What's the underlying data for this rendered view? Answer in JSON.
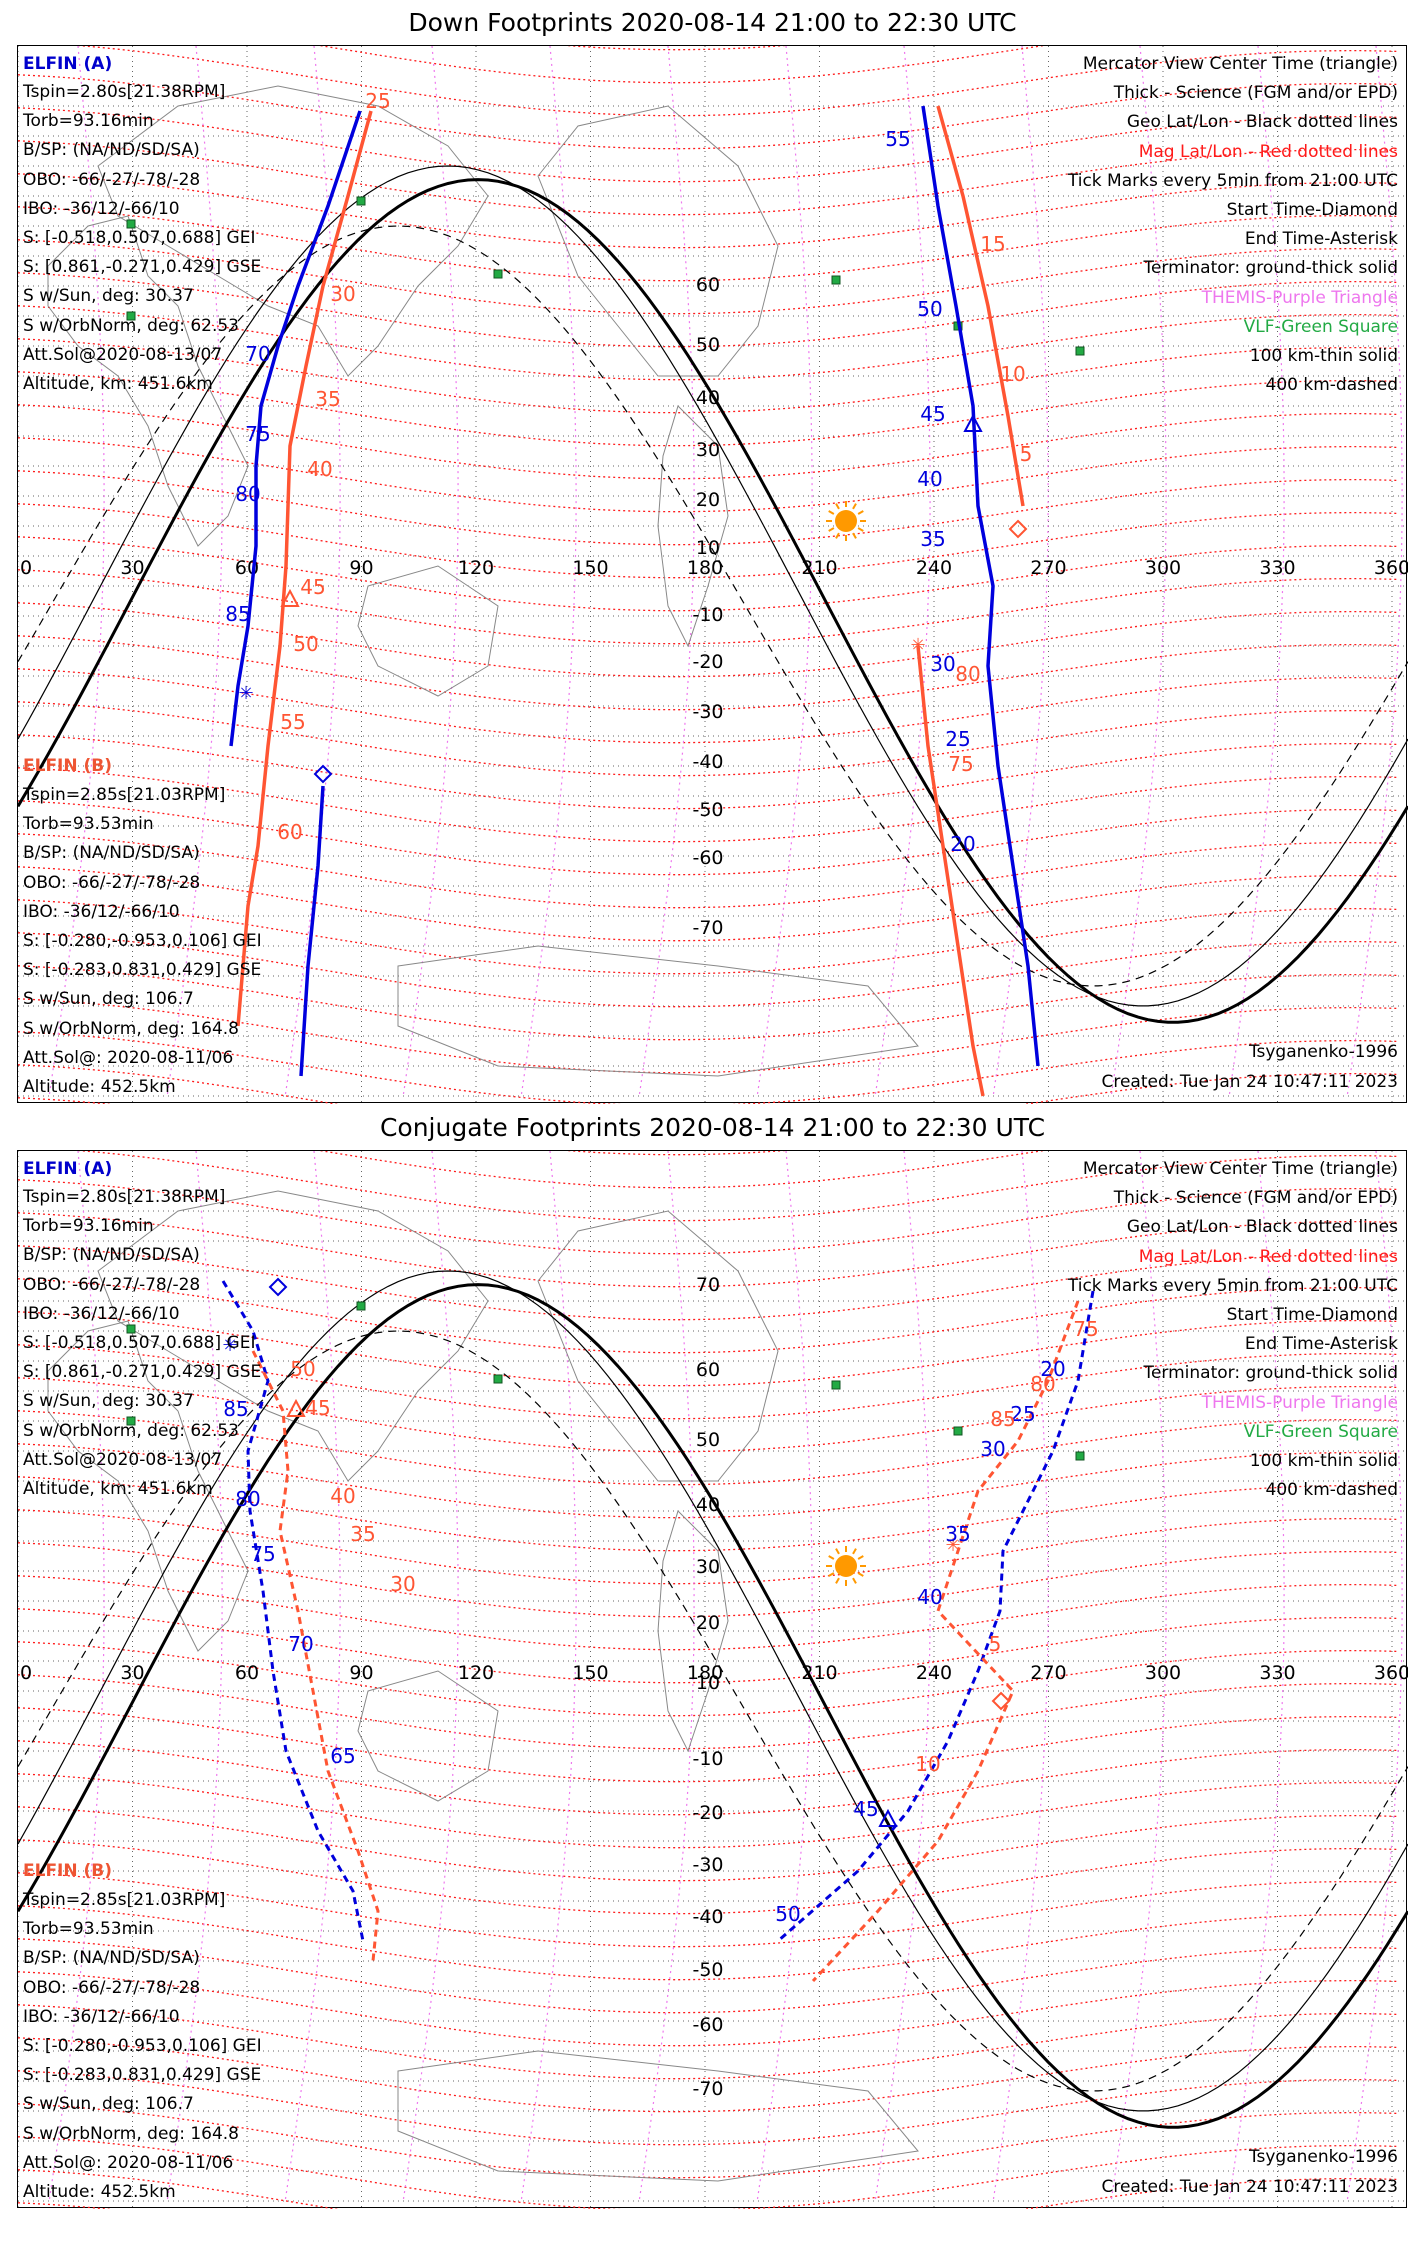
{
  "panels": [
    {
      "id": "down",
      "title": "Down Footprints 2020-08-14 21:00 to 22:30 UTC",
      "left_info": {
        "sat_a": "ELFIN (A)",
        "a_lines": [
          "Tspin=2.80s[21.38RPM]",
          "Torb=93.16min",
          "B/SP: (NA/ND/SD/SA)",
          "OBO: -66/-27/-78/-28",
          "IBO: -36/12/-66/10",
          "S: [-0.518,0.507,0.688] GEI",
          "S: [0.861,-0.271,0.429] GSE",
          "S w/Sun, deg: 30.37",
          "S w/OrbNorm, deg: 62.53",
          "Att.Sol@2020-08-13/07",
          "Altitude, km: 451.6km"
        ],
        "sat_b": "ELFIN (B)",
        "b_lines": [
          "Tspin=2.85s[21.03RPM]",
          "Torb=93.53min",
          "B/SP: (NA/ND/SD/SA)",
          "OBO: -66/-27/-78/-28",
          "IBO: -36/12/-66/10",
          "S: [-0.280,-0.953,0.106] GEI",
          "S: [-0.283,0.831,0.429] GSE",
          "S w/Sun, deg: 106.7",
          "S w/OrbNorm, deg: 164.8",
          "Att.Sol@: 2020-08-11/06",
          "Altitude: 452.5km"
        ]
      },
      "footer_right": "Created: Tue Jan 24 10:47:11 2023",
      "footer_model": "Tsyganenko-1996"
    },
    {
      "id": "conjugate",
      "title": "Conjugate Footprints 2020-08-14 21:00 to 22:30 UTC",
      "left_info": {
        "sat_a": "ELFIN (A)",
        "a_lines": [
          "Tspin=2.80s[21.38RPM]",
          "Torb=93.16min",
          "B/SP: (NA/ND/SD/SA)",
          "OBO: -66/-27/-78/-28",
          "IBO: -36/12/-66/10",
          "S: [-0.518,0.507,0.688] GEI",
          "S: [0.861,-0.271,0.429] GSE",
          "S w/Sun, deg: 30.37",
          "S w/OrbNorm, deg: 62.53",
          "Att.Sol@2020-08-13/07",
          "Altitude, km: 451.6km"
        ],
        "sat_b": "ELFIN (B)",
        "b_lines": [
          "Tspin=2.85s[21.03RPM]",
          "Torb=93.53min",
          "B/SP: (NA/ND/SD/SA)",
          "OBO: -66/-27/-78/-28",
          "IBO: -36/12/-66/10",
          "S: [-0.280,-0.953,0.106] GEI",
          "S: [-0.283,0.831,0.429] GSE",
          "S w/Sun, deg: 106.7",
          "S w/OrbNorm, deg: 164.8",
          "Att.Sol@: 2020-08-11/06",
          "Altitude: 452.5km"
        ]
      },
      "footer_right": "Created: Tue Jan 24 10:47:11 2023",
      "footer_model": "Tsyganenko-1996"
    }
  ],
  "legend": {
    "lines": [
      {
        "text": "Mercator View Center Time (triangle)",
        "color": "#000000"
      },
      {
        "text": "Thick - Science (FGM and/or EPD)",
        "color": "#000000"
      },
      {
        "text": "Geo Lat/Lon - Black dotted lines",
        "color": "#000000"
      },
      {
        "text": "Mag Lat/Lon - Red dotted lines",
        "color": "#ff1a1a"
      },
      {
        "text": "Tick Marks every 5min from 21:00 UTC",
        "color": "#000000"
      },
      {
        "text": "Start Time-Diamond",
        "color": "#000000"
      },
      {
        "text": "End Time-Asterisk",
        "color": "#000000"
      },
      {
        "text": "Terminator: ground-thick solid",
        "color": "#000000"
      },
      {
        "text": "THEMIS-Purple Triangle",
        "color": "#ee77ee"
      },
      {
        "text": "VLF-Green Square",
        "color": "#22aa44"
      },
      {
        "text": "100 km-thin solid",
        "color": "#000000"
      },
      {
        "text": "400 km-dashed",
        "color": "#000000"
      }
    ]
  },
  "map": {
    "lon_labels": [
      "0",
      "30",
      "60",
      "90",
      "120",
      "150",
      "180",
      "210",
      "240",
      "270",
      "300",
      "330",
      "360"
    ],
    "lat_labels_down": [
      "60",
      "50",
      "40",
      "30",
      "20",
      "10",
      "-10",
      "-20",
      "-30",
      "-40",
      "-50",
      "-60",
      "-70"
    ],
    "lat_labels_conj": [
      "70",
      "60",
      "50",
      "40",
      "30",
      "20",
      "10",
      "-10",
      "-20",
      "-30",
      "-40",
      "-50",
      "-60",
      "-70"
    ],
    "colors": {
      "elfin_a": "#0000dd",
      "elfin_b": "#ff5533",
      "sun": "#ff9900",
      "vlf": "#22aa44",
      "themis": "#ee77ee",
      "mag": "#ff1a1a"
    }
  },
  "chart_data": [
    {
      "type": "map",
      "panel": "Down Footprints",
      "xrange_lon": [
        0,
        360
      ],
      "grid": "geo and mag dotted",
      "series": [
        {
          "name": "ELFIN (A)",
          "tick_labels": [
            "55",
            "50",
            "45",
            "40",
            "35",
            "30",
            "25",
            "20",
            "70",
            "75",
            "80",
            "85"
          ]
        },
        {
          "name": "ELFIN (B)",
          "tick_labels": [
            "25",
            "30",
            "35",
            "40",
            "45",
            "50",
            "55",
            "60",
            "15",
            "10",
            "5",
            "80",
            "75"
          ]
        }
      ]
    },
    {
      "type": "map",
      "panel": "Conjugate Footprints",
      "xrange_lon": [
        0,
        360
      ],
      "series": [
        {
          "name": "ELFIN (A)",
          "tick_labels": [
            "85",
            "80",
            "75",
            "70",
            "65",
            "20",
            "25",
            "30",
            "35",
            "40",
            "45",
            "50"
          ]
        },
        {
          "name": "ELFIN (B)",
          "tick_labels": [
            "50",
            "45",
            "40",
            "35",
            "30",
            "75",
            "80",
            "85",
            "5",
            "10"
          ]
        }
      ]
    }
  ]
}
